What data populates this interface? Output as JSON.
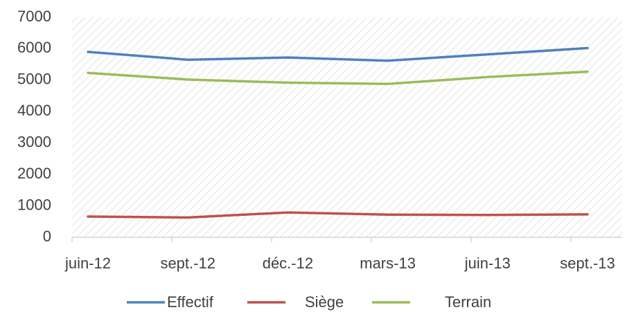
{
  "chart_data": {
    "type": "line",
    "categories": [
      "juin-12",
      "sept.-12",
      "déc.-12",
      "mars-13",
      "juin-13",
      "sept.-13"
    ],
    "series": [
      {
        "name": "Effectif",
        "color": "#4f81bd",
        "values": [
          5900,
          5650,
          5720,
          5620,
          5820,
          6020
        ]
      },
      {
        "name": "Siège",
        "color": "#c0504d",
        "values": [
          660,
          630,
          790,
          720,
          710,
          730
        ]
      },
      {
        "name": "Terrain",
        "color": "#9bbb59",
        "values": [
          5230,
          5020,
          4920,
          4880,
          5100,
          5270
        ]
      }
    ],
    "ylim": [
      0,
      7000
    ],
    "yticks": [
      0,
      1000,
      2000,
      3000,
      4000,
      5000,
      6000,
      7000
    ],
    "legend": "bottom"
  }
}
